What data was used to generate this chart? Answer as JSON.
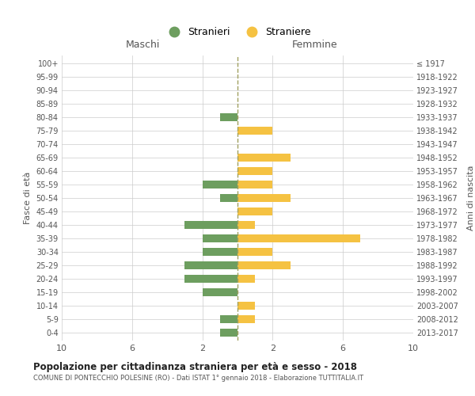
{
  "age_groups": [
    "0-4",
    "5-9",
    "10-14",
    "15-19",
    "20-24",
    "25-29",
    "30-34",
    "35-39",
    "40-44",
    "45-49",
    "50-54",
    "55-59",
    "60-64",
    "65-69",
    "70-74",
    "75-79",
    "80-84",
    "85-89",
    "90-94",
    "95-99",
    "100+"
  ],
  "birth_years": [
    "2013-2017",
    "2008-2012",
    "2003-2007",
    "1998-2002",
    "1993-1997",
    "1988-1992",
    "1983-1987",
    "1978-1982",
    "1973-1977",
    "1968-1972",
    "1963-1967",
    "1958-1962",
    "1953-1957",
    "1948-1952",
    "1943-1947",
    "1938-1942",
    "1933-1937",
    "1928-1932",
    "1923-1927",
    "1918-1922",
    "≤ 1917"
  ],
  "maschi": [
    1,
    1,
    0,
    2,
    3,
    3,
    2,
    2,
    3,
    0,
    1,
    2,
    0,
    0,
    0,
    0,
    1,
    0,
    0,
    0,
    0
  ],
  "femmine": [
    0,
    1,
    1,
    0,
    1,
    3,
    2,
    7,
    1,
    2,
    3,
    2,
    2,
    3,
    0,
    2,
    0,
    0,
    0,
    0,
    0
  ],
  "color_maschi": "#6d9e5f",
  "color_femmine": "#f5c242",
  "bg_color": "#ffffff",
  "grid_color": "#cccccc",
  "dashed_line_color": "#a0a060",
  "xlim": 10,
  "title": "Popolazione per cittadinanza straniera per età e sesso - 2018",
  "subtitle": "COMUNE DI PONTECCHIO POLESINE (RO) - Dati ISTAT 1° gennaio 2018 - Elaborazione TUTTITALIA.IT",
  "label_maschi": "Maschi",
  "label_femmine": "Femmine",
  "legend_stranieri": "Stranieri",
  "legend_straniere": "Straniere",
  "ylabel_left": "Fasce di età",
  "ylabel_right": "Anni di nascita"
}
